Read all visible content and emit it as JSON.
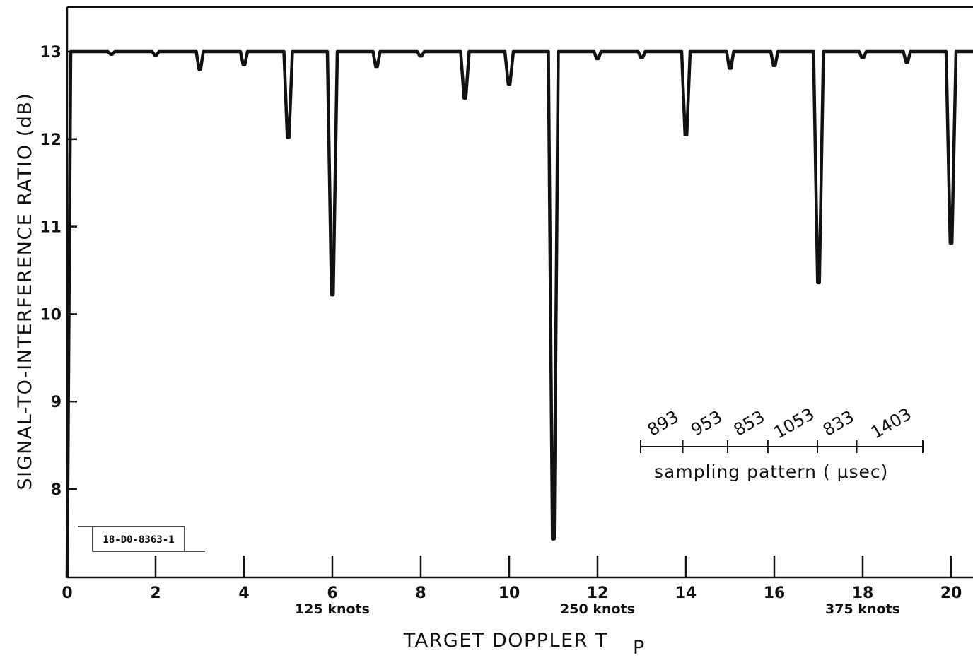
{
  "chart_data": {
    "type": "line",
    "title": "",
    "xlabel": "TARGET DOPPLER T",
    "xlabel_subscript": "P",
    "ylabel": "SIGNAL-TO-INTERFERENCE RATIO (dB)",
    "xlim": [
      0,
      20.6
    ],
    "ylim": [
      7,
      13.5
    ],
    "x_ticks": [
      0,
      2,
      4,
      6,
      8,
      10,
      12,
      14,
      16,
      18,
      20
    ],
    "x_tick_labels": [
      "0",
      "2",
      "4",
      "6",
      "8",
      "10",
      "12",
      "14",
      "16",
      "18",
      "20"
    ],
    "y_ticks": [
      8,
      9,
      10,
      11,
      12,
      13
    ],
    "y_tick_labels": [
      "8",
      "9",
      "10",
      "11",
      "12",
      "13"
    ],
    "knot_labels": [
      {
        "x": 6,
        "text": "125 knots"
      },
      {
        "x": 12,
        "text": "250 knots"
      },
      {
        "x": 18,
        "text": "375 knots"
      }
    ],
    "grid": false,
    "series": [
      {
        "baseline": 13,
        "notches": [
          {
            "x": 0,
            "y": 7.0
          },
          {
            "x": 1,
            "y": 12.97
          },
          {
            "x": 2,
            "y": 12.96
          },
          {
            "x": 3,
            "y": 12.8
          },
          {
            "x": 4,
            "y": 12.85
          },
          {
            "x": 5,
            "y": 12.02
          },
          {
            "x": 6,
            "y": 10.22
          },
          {
            "x": 7,
            "y": 12.83
          },
          {
            "x": 8,
            "y": 12.95
          },
          {
            "x": 9,
            "y": 12.47
          },
          {
            "x": 10,
            "y": 12.63
          },
          {
            "x": 11,
            "y": 7.43
          },
          {
            "x": 12,
            "y": 12.92
          },
          {
            "x": 13,
            "y": 12.93
          },
          {
            "x": 14,
            "y": 12.05
          },
          {
            "x": 15,
            "y": 12.81
          },
          {
            "x": 16,
            "y": 12.84
          },
          {
            "x": 17,
            "y": 10.36
          },
          {
            "x": 18,
            "y": 12.93
          },
          {
            "x": 19,
            "y": 12.88
          },
          {
            "x": 20,
            "y": 10.81
          }
        ]
      }
    ],
    "annotation": {
      "sampling_pattern_values": [
        "893",
        "953",
        "853",
        "1053",
        "833",
        "1403"
      ],
      "caption": "sampling pattern ( μsec)"
    },
    "doc_id": "18-D0-8363-1"
  }
}
